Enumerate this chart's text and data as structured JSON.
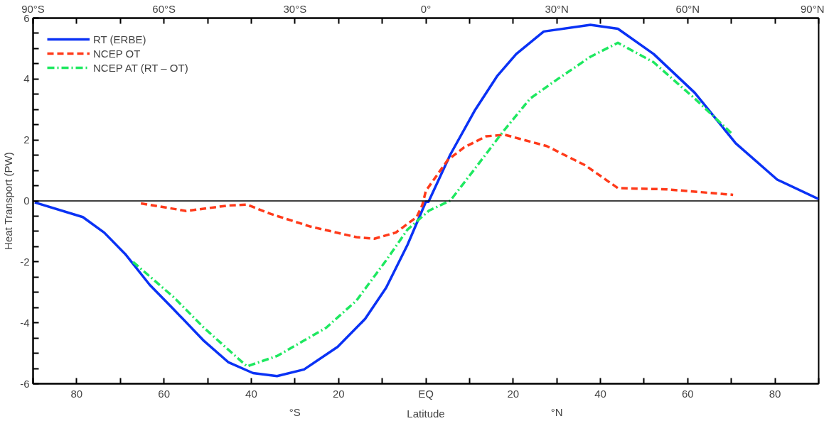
{
  "chart_data": {
    "type": "line",
    "xlabel": "Latitude",
    "ylabel": "Heat Transport (PW)",
    "xlim": [
      -90,
      90
    ],
    "ylim": [
      -6,
      6
    ],
    "xticks": [
      {
        "value": -90,
        "label": null
      },
      {
        "value": -80,
        "label": "80"
      },
      {
        "value": -70,
        "label": null
      },
      {
        "value": -60,
        "label": "60"
      },
      {
        "value": -50,
        "label": null
      },
      {
        "value": -40,
        "label": "40"
      },
      {
        "value": -30,
        "label": null
      },
      {
        "value": -20,
        "label": "20"
      },
      {
        "value": -10,
        "label": null
      },
      {
        "value": 0,
        "label": "EQ"
      },
      {
        "value": 10,
        "label": null
      },
      {
        "value": 20,
        "label": "20"
      },
      {
        "value": 30,
        "label": null
      },
      {
        "value": 40,
        "label": "40"
      },
      {
        "value": 50,
        "label": null
      },
      {
        "value": 60,
        "label": "60"
      },
      {
        "value": 70,
        "label": null
      },
      {
        "value": 80,
        "label": "80"
      },
      {
        "value": 90,
        "label": null
      }
    ],
    "x2lim": [
      -90,
      90
    ],
    "x2ticks": [
      {
        "value": -90,
        "label": "90°S"
      },
      {
        "value": -80,
        "label": null
      },
      {
        "value": -70,
        "label": null
      },
      {
        "value": -60,
        "label": "60°S"
      },
      {
        "value": -50,
        "label": null
      },
      {
        "value": -40,
        "label": null
      },
      {
        "value": -30,
        "label": "30°S"
      },
      {
        "value": -20,
        "label": null
      },
      {
        "value": -10,
        "label": null
      },
      {
        "value": 0,
        "label": "0°"
      },
      {
        "value": 10,
        "label": null
      },
      {
        "value": 20,
        "label": null
      },
      {
        "value": 30,
        "label": "30°N"
      },
      {
        "value": 40,
        "label": null
      },
      {
        "value": 50,
        "label": null
      },
      {
        "value": 60,
        "label": "60°N"
      },
      {
        "value": 70,
        "label": null
      },
      {
        "value": 80,
        "label": null
      },
      {
        "value": 90,
        "label": "90°N"
      }
    ],
    "yticks": [
      -6,
      {
        "value": -5.5,
        "label": null
      },
      {
        "value": -5,
        "label": null
      },
      {
        "value": -4.5,
        "label": null
      },
      -4,
      {
        "value": -3.5,
        "label": null
      },
      {
        "value": -3,
        "label": null
      },
      {
        "value": -2.5,
        "label": null
      },
      -2,
      {
        "value": -1.5,
        "label": null
      },
      {
        "value": -1,
        "label": null
      },
      {
        "value": -0.5,
        "label": null
      },
      0,
      {
        "value": 0.5,
        "label": null
      },
      {
        "value": 1,
        "label": null
      },
      {
        "value": 1.5,
        "label": null
      },
      2,
      {
        "value": 2.5,
        "label": null
      },
      {
        "value": 3,
        "label": null
      },
      {
        "value": 3.5,
        "label": null
      },
      4,
      {
        "value": 4.5,
        "label": null
      },
      {
        "value": 5,
        "label": null
      },
      {
        "value": 5.5,
        "label": null
      },
      6
    ],
    "grid": false,
    "legend": "top left",
    "ref_lines": [
      {
        "axis": "y",
        "value": 0,
        "color": "#000000",
        "line_style": "solid"
      }
    ],
    "annotations": [
      "°S",
      "°N"
    ],
    "series": [
      {
        "name": "RT (ERBE)",
        "color": "#0a32f5",
        "line_style": "solid",
        "x": [
          -89.6,
          -78.6,
          -73.7,
          -68.9,
          -63.3,
          -57.7,
          -50.8,
          -45.2,
          -39.6,
          -34.1,
          -27.9,
          -20.2,
          -13.9,
          -9.1,
          -4.2,
          0,
          0.6,
          5.6,
          11.3,
          16.3,
          20.7,
          27,
          37.7,
          44,
          52.2,
          61.6,
          71,
          80.5,
          90
        ],
        "values": [
          -0.05,
          -0.53,
          -1.04,
          -1.74,
          -2.75,
          -3.57,
          -4.6,
          -5.3,
          -5.65,
          -5.75,
          -5.53,
          -4.79,
          -3.87,
          -2.85,
          -1.44,
          -0.03,
          -0.03,
          1.52,
          2.99,
          4.09,
          4.82,
          5.56,
          5.78,
          5.65,
          4.82,
          3.55,
          1.89,
          0.7,
          0.06
        ]
      },
      {
        "name": "NCEP OT",
        "color": "#ff3a1a",
        "line_style": "dashed",
        "x": [
          -65.3,
          -54.9,
          -45.2,
          -41,
          -35.5,
          -26.5,
          -15.9,
          -11.8,
          -6.9,
          -2.1,
          -0.8,
          0,
          5,
          8.8,
          13.8,
          18.1,
          27.7,
          36.5,
          44,
          55.3,
          70.4
        ],
        "values": [
          -0.08,
          -0.33,
          -0.15,
          -0.12,
          -0.43,
          -0.84,
          -1.19,
          -1.24,
          -1.04,
          -0.53,
          -0.13,
          0.33,
          1.34,
          1.76,
          2.12,
          2.17,
          1.8,
          1.17,
          0.42,
          0.38,
          0.2
        ]
      },
      {
        "name": "NCEP AT (RT – OT)",
        "color": "#1ee860",
        "line_style": "dashdot",
        "x": [
          -67.1,
          -57.7,
          -50.8,
          -41,
          -34.1,
          -22.9,
          -15.9,
          -9.1,
          -4.2,
          0.7,
          5.6,
          11.3,
          17.6,
          23.9,
          30.2,
          37.7,
          44,
          52.2,
          61.6,
          70.4
        ],
        "values": [
          -2.0,
          -3.17,
          -4.17,
          -5.43,
          -5.09,
          -4.17,
          -3.27,
          -1.95,
          -0.94,
          -0.32,
          0.01,
          1.07,
          2.26,
          3.36,
          4.0,
          4.73,
          5.19,
          4.55,
          3.36,
          2.17
        ]
      }
    ]
  }
}
